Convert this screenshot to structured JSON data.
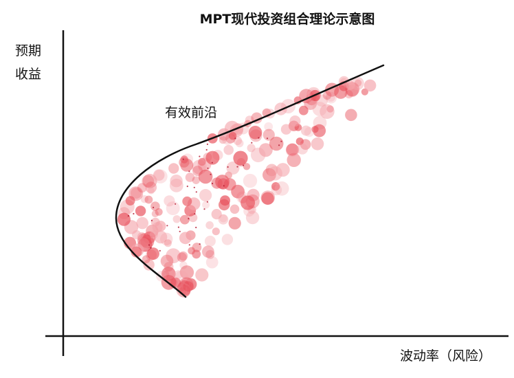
{
  "title": "MPT现代投资组合理论示意图",
  "y_axis_label_line1": "预期",
  "y_axis_label_line2": "收益",
  "x_axis_label": "波动率（风险）",
  "frontier_label": "有效前沿",
  "colors": {
    "text": "#111111",
    "axis": "#111111",
    "frontier": "#111111",
    "portfolio_dot": "#e8505b",
    "portfolio_dot_light": "#f4a3aa",
    "portfolio_dot_dark": "#b3132a"
  }
}
